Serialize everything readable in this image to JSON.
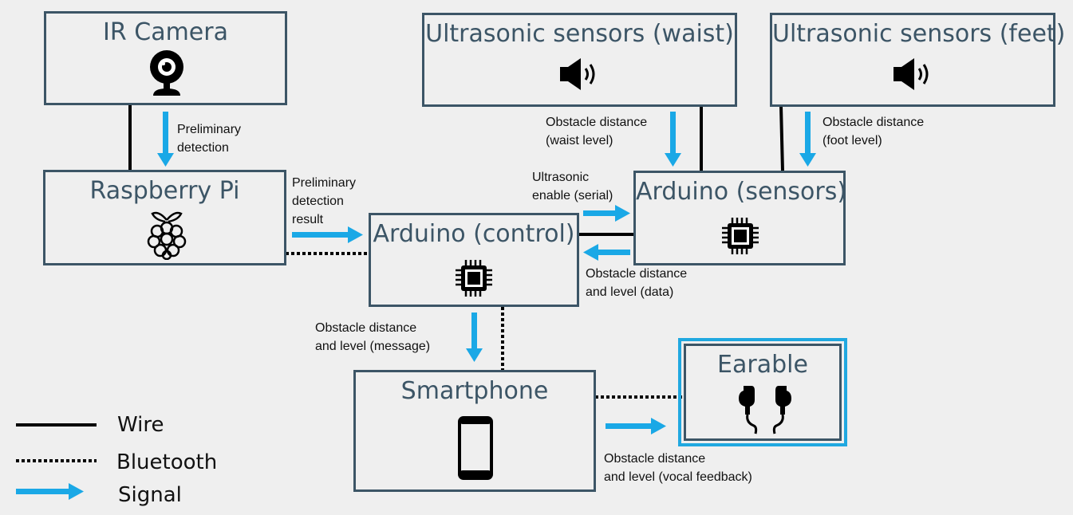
{
  "nodes": {
    "ir_camera": {
      "title": "IR Camera",
      "icon": "webcam-icon"
    },
    "us_waist": {
      "title": "Ultrasonic sensors (waist)",
      "icon": "speaker-icon"
    },
    "us_feet": {
      "title": "Ultrasonic sensors (feet)",
      "icon": "speaker-icon"
    },
    "raspberry_pi": {
      "title": "Raspberry Pi",
      "icon": "raspberry-pi-icon"
    },
    "arduino_control": {
      "title": "Arduino (control)",
      "icon": "chip-icon"
    },
    "arduino_sensors": {
      "title": "Arduino (sensors)",
      "icon": "chip-icon"
    },
    "smartphone": {
      "title": "Smartphone",
      "icon": "smartphone-icon"
    },
    "earable": {
      "title": "Earable",
      "icon": "earbuds-icon"
    }
  },
  "labels": {
    "prelim_detection": [
      "Preliminary",
      "detection"
    ],
    "prelim_result": [
      "Preliminary",
      "detection",
      "result"
    ],
    "obstacle_waist": [
      "Obstacle distance",
      "(waist level)"
    ],
    "obstacle_foot": [
      "Obstacle distance",
      "(foot level)"
    ],
    "ultrasonic_enable": [
      "Ultrasonic",
      "enable (serial)"
    ],
    "obstacle_data": [
      "Obstacle distance",
      "and level (data)"
    ],
    "obstacle_message": [
      "Obstacle distance",
      "and level (message)"
    ],
    "obstacle_vocal": [
      "Obstacle distance",
      "and level (vocal feedback)"
    ]
  },
  "legend": {
    "wire": "Wire",
    "bluetooth": "Bluetooth",
    "signal": "Signal"
  },
  "colors": {
    "box_border": "#3c5566",
    "signal_arrow": "#1aa8e6",
    "wire": "#000000",
    "earable_highlight": "#20a8e0"
  }
}
